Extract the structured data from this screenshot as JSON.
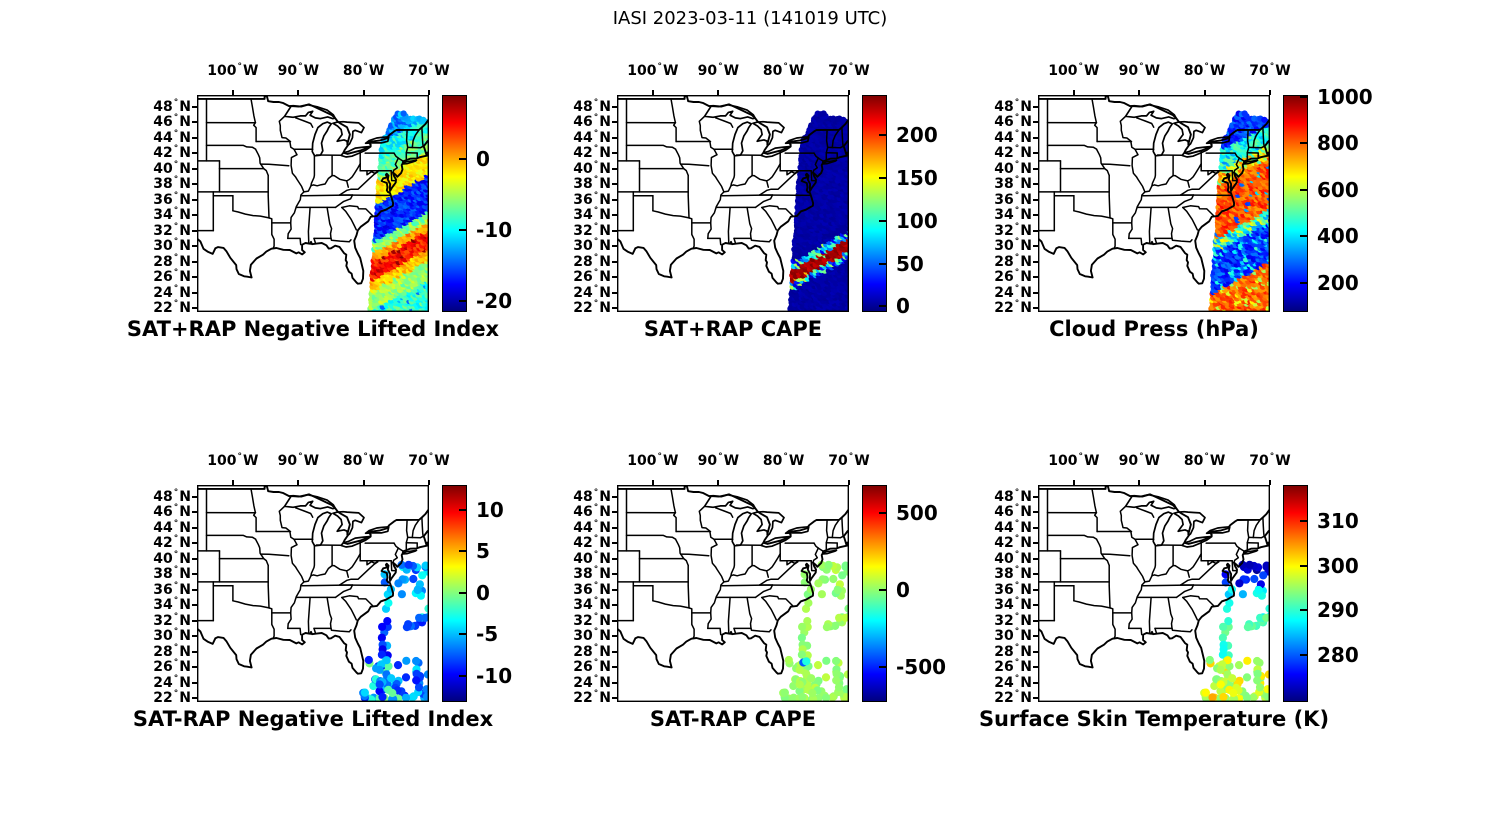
{
  "figure": {
    "title": "IASI 2023-03-11 (141019 UTC)"
  },
  "axes": {
    "lon_ticks": [
      {
        "label": "100° W",
        "lon": -100
      },
      {
        "label": "90° W",
        "lon": -90
      },
      {
        "label": "80° W",
        "lon": -80
      },
      {
        "label": "70° W",
        "lon": -70
      }
    ],
    "lat_ticks": [
      {
        "label": "48° N",
        "lat": 48
      },
      {
        "label": "46° N",
        "lat": 46
      },
      {
        "label": "44° N",
        "lat": 44
      },
      {
        "label": "42° N",
        "lat": 42
      },
      {
        "label": "40° N",
        "lat": 40
      },
      {
        "label": "38° N",
        "lat": 38
      },
      {
        "label": "36° N",
        "lat": 36
      },
      {
        "label": "34° N",
        "lat": 34
      },
      {
        "label": "32° N",
        "lat": 32
      },
      {
        "label": "30° N",
        "lat": 30
      },
      {
        "label": "28° N",
        "lat": 28
      },
      {
        "label": "26° N",
        "lat": 26
      },
      {
        "label": "24° N",
        "lat": 24
      },
      {
        "label": "22° N",
        "lat": 22
      }
    ]
  },
  "chart_data": {
    "type": "scatter",
    "subtype": "geographic-swath-maps",
    "colormap": "jet",
    "colormap_stops": [
      "#00007f",
      "#0000ff",
      "#00ffff",
      "#7fff7f",
      "#ffff00",
      "#ff0000",
      "#7f0000"
    ],
    "map_extent": {
      "lon_min": -105.5,
      "lon_max": -70.0,
      "lat_min": 21.5,
      "lat_max": 49.5
    },
    "swath": {
      "tilt": 0.47,
      "left_edge": {
        "lat_ref": 21.5,
        "lon_at_ref": -78.95,
        "slope_low": 0.085,
        "break_lat": 43,
        "slope_high": 0.55
      },
      "right_edge_lon": -68.7,
      "top_cut": {
        "lat0": 47.55,
        "lon0": -74.9,
        "slope": -0.24
      }
    },
    "panels": [
      {
        "id": "sat_plus_rap_nli",
        "title": "SAT+RAP Negative Lifted Index",
        "row": 0,
        "col": 0,
        "footprint": "swath",
        "colorbar": {
          "vmin": -21.5,
          "vmax": 9,
          "ticks": [
            {
              "label": "0",
              "value": 0
            },
            {
              "label": "-10",
              "value": -10
            },
            {
              "label": "-20",
              "value": -20
            }
          ]
        },
        "bands": [
          {
            "from": 45.0,
            "to": 48.6,
            "value": -13.5,
            "spread": 2.5
          },
          {
            "from": 43.0,
            "to": 45.0,
            "value": -9.5,
            "spread": 2.5
          },
          {
            "from": 40.4,
            "to": 43.0,
            "value": -7.0,
            "spread": 2.2
          },
          {
            "from": 37.4,
            "to": 40.4,
            "value": -1.8,
            "spread": 1.8
          },
          {
            "from": 32.7,
            "to": 37.4,
            "value": -16.5,
            "spread": 2.2
          },
          {
            "from": 31.4,
            "to": 32.7,
            "value": -6.0,
            "spread": 2.5
          },
          {
            "from": 30.2,
            "to": 31.4,
            "value": 0.5,
            "spread": 1.8
          },
          {
            "from": 27.9,
            "to": 30.2,
            "value": 4.5,
            "spread": 2.0,
            "speck": 8,
            "speck_spread": 1,
            "speck_p": 0.1
          },
          {
            "from": 26.4,
            "to": 27.9,
            "value": -0.5,
            "spread": 1.8
          },
          {
            "from": 23.9,
            "to": 26.4,
            "value": -5.5,
            "spread": 2.0
          },
          {
            "from": 18.0,
            "to": 23.9,
            "value": -8.5,
            "spread": 2.3,
            "speck": -14,
            "speck_spread": 2,
            "speck_p": 0.12
          }
        ]
      },
      {
        "id": "sat_plus_rap_cape",
        "title": "SAT+RAP CAPE",
        "row": 0,
        "col": 1,
        "footprint": "swath",
        "colorbar": {
          "vmin": -6.5,
          "vmax": 247,
          "ticks": [
            {
              "label": "200",
              "value": 200
            },
            {
              "label": "150",
              "value": 150
            },
            {
              "label": "100",
              "value": 100
            },
            {
              "label": "50",
              "value": 50
            },
            {
              "label": "0",
              "value": 0
            }
          ]
        },
        "bands": [
          {
            "from": 30.2,
            "to": 48.6,
            "value": 3,
            "spread": 4
          },
          {
            "from": 29.2,
            "to": 30.2,
            "value": 70,
            "spread": 65
          },
          {
            "from": 27.5,
            "to": 29.2,
            "value": 237,
            "spread": 10,
            "speck": 150,
            "speck_spread": 80,
            "speck_p": 0.15
          },
          {
            "from": 26.6,
            "to": 27.5,
            "value": 80,
            "spread": 70
          },
          {
            "from": 18.0,
            "to": 26.6,
            "value": 3,
            "spread": 4
          }
        ]
      },
      {
        "id": "cloud_press",
        "title": "Cloud Press (hPa)",
        "row": 0,
        "col": 2,
        "footprint": "swath",
        "colorbar": {
          "vmin": 75,
          "vmax": 1008,
          "ticks": [
            {
              "label": "1000",
              "value": 1000
            },
            {
              "label": "800",
              "value": 800
            },
            {
              "label": "600",
              "value": 600
            },
            {
              "label": "400",
              "value": 400
            },
            {
              "label": "200",
              "value": 200
            }
          ]
        },
        "bands": [
          {
            "from": 44.0,
            "to": 48.6,
            "value": 240,
            "spread": 70
          },
          {
            "from": 41.4,
            "to": 44.0,
            "value": 430,
            "spread": 110
          },
          {
            "from": 39.7,
            "to": 41.4,
            "value": 630,
            "spread": 160
          },
          {
            "from": 33.0,
            "to": 39.7,
            "value": 815,
            "spread": 75,
            "speck": 330,
            "speck_spread": 90,
            "speck_p": 0.08
          },
          {
            "from": 31.4,
            "to": 33.0,
            "value": 500,
            "spread": 190
          },
          {
            "from": 26.2,
            "to": 31.4,
            "value": 240,
            "spread": 75,
            "speck": 430,
            "speck_spread": 60,
            "speck_p": 0.15
          },
          {
            "from": 18.0,
            "to": 26.2,
            "value": 800,
            "spread": 70,
            "speck": 610,
            "speck_spread": 60,
            "speck_p": 0.15
          }
        ]
      },
      {
        "id": "sat_minus_rap_nli",
        "title": "SAT-RAP Negative Lifted Index",
        "row": 1,
        "col": 0,
        "footprint": "points",
        "colorbar": {
          "vmin": -13.2,
          "vmax": 13,
          "ticks": [
            {
              "label": "10",
              "value": 10
            },
            {
              "label": "5",
              "value": 5
            },
            {
              "label": "0",
              "value": 0
            },
            {
              "label": "-5",
              "value": -5
            },
            {
              "label": "-10",
              "value": -10
            }
          ]
        },
        "bands": [
          {
            "from": 38.2,
            "to": 48.6,
            "value": -6.0,
            "spread": 3.0
          },
          {
            "from": 35.2,
            "to": 38.2,
            "value": -5.5,
            "spread": 3.0
          },
          {
            "from": 32.4,
            "to": 35.2,
            "value": -4.5,
            "spread": 2.5
          },
          {
            "from": 29.4,
            "to": 32.4,
            "value": -8.5,
            "spread": 2.0
          },
          {
            "from": 27.2,
            "to": 29.4,
            "value": -8.0,
            "spread": 3.0
          },
          {
            "from": 18.0,
            "to": 27.2,
            "value": -7.0,
            "spread": 3.0,
            "speck": -1.5,
            "speck_spread": 1.5,
            "speck_p": 0.15
          }
        ],
        "outliers": []
      },
      {
        "id": "sat_minus_rap_cape",
        "title": "SAT-RAP CAPE",
        "row": 1,
        "col": 1,
        "footprint": "points",
        "colorbar": {
          "vmin": -730,
          "vmax": 685,
          "ticks": [
            {
              "label": "500",
              "value": 500
            },
            {
              "label": "0",
              "value": 0
            },
            {
              "label": "-500",
              "value": -500
            }
          ]
        },
        "bands": [
          {
            "from": 18.0,
            "to": 48.6,
            "value": 15,
            "spread": 55
          }
        ],
        "outliers": [
          {
            "lon": -77.0,
            "lat": 26.6,
            "value": -430
          },
          {
            "lon": -76.55,
            "lat": 26.75,
            "value": -160
          }
        ]
      },
      {
        "id": "surface_skin_temp",
        "title": "Surface Skin Temperature (K)",
        "row": 1,
        "col": 2,
        "footprint": "points",
        "colorbar": {
          "vmin": 269.5,
          "vmax": 318,
          "ticks": [
            {
              "label": "310",
              "value": 310
            },
            {
              "label": "300",
              "value": 300
            },
            {
              "label": "290",
              "value": 290
            },
            {
              "label": "280",
              "value": 280
            }
          ]
        },
        "bands": [
          {
            "from": 38.2,
            "to": 48.6,
            "value": 272.5,
            "spread": 2.0
          },
          {
            "from": 36.2,
            "to": 38.2,
            "value": 276.0,
            "spread": 3.0
          },
          {
            "from": 34.4,
            "to": 36.2,
            "value": 286.5,
            "spread": 2.5
          },
          {
            "from": 32.4,
            "to": 34.4,
            "value": 287.5,
            "spread": 2.0
          },
          {
            "from": 29.4,
            "to": 32.4,
            "value": 291.5,
            "spread": 2.0
          },
          {
            "from": 27.2,
            "to": 29.4,
            "value": 289.5,
            "spread": 2.5
          },
          {
            "from": 18.0,
            "to": 27.2,
            "value": 296.0,
            "spread": 2.5,
            "speck": 300.5,
            "speck_spread": 1.5,
            "speck_p": 0.2
          }
        ],
        "outliers": [
          {
            "lon": -78.8,
            "lat": 22.1,
            "value": 304
          }
        ]
      }
    ]
  }
}
